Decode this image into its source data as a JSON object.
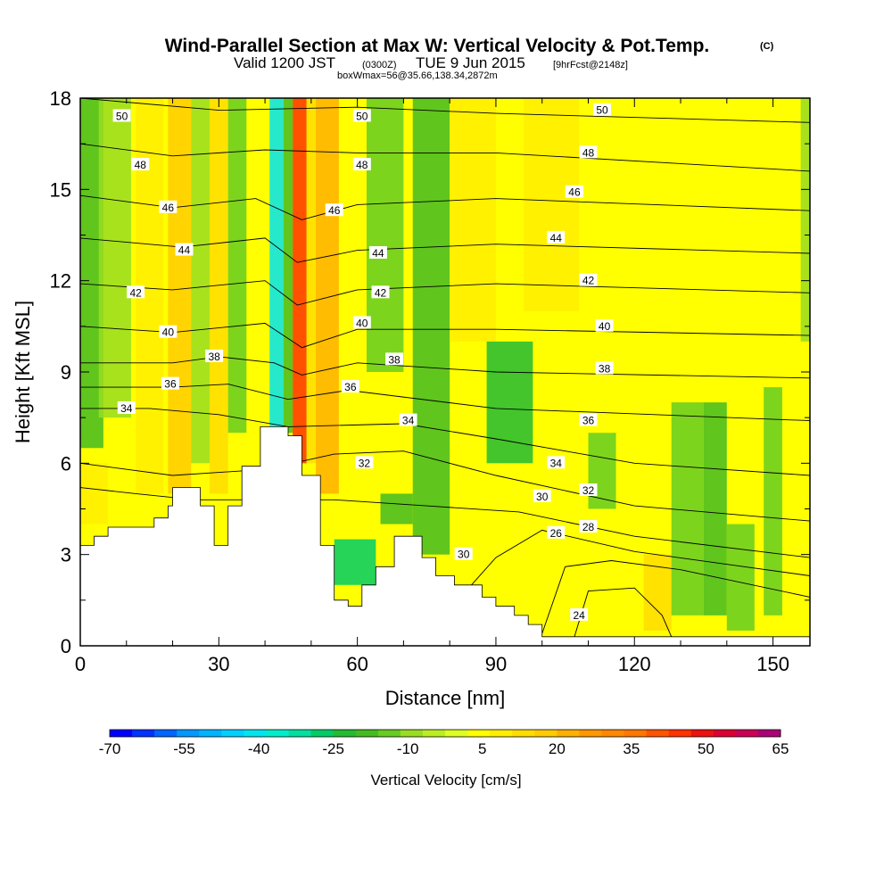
{
  "title": {
    "main": "Wind-Parallel Section at Max W: Vertical Velocity & Pot.Temp.",
    "copyright": "(C)",
    "valid_prefix": "Valid 1200 JST",
    "utc": "(0300Z)",
    "date": "TUE 9 Jun 2015",
    "forecast": "[9hrFcst@2148z]",
    "box": "boxWmax=56@35.66,138.34,2872m"
  },
  "chart_data": {
    "type": "heatmap",
    "xlabel": "Distance [nm]",
    "ylabel": "Height [Kft MSL]",
    "xlim": [
      0,
      158
    ],
    "ylim": [
      0,
      18
    ],
    "x_ticks": [
      "0",
      "30",
      "60",
      "90",
      "120",
      "150"
    ],
    "y_ticks": [
      "0",
      "3",
      "6",
      "9",
      "12",
      "15",
      "18"
    ],
    "colorbar": {
      "label": "Vertical Velocity [cm/s]",
      "tick_labels": [
        "-70",
        "-55",
        "-40",
        "-25",
        "-10",
        "5",
        "20",
        "35",
        "50",
        "65"
      ],
      "range": [
        -70,
        65
      ],
      "step": 5,
      "colors": [
        "#0000ff",
        "#0033ff",
        "#0066ff",
        "#0099ff",
        "#00b4ff",
        "#00d0ff",
        "#00e5f0",
        "#00eecc",
        "#00e0a0",
        "#00cc66",
        "#22bb33",
        "#44bb22",
        "#66cc22",
        "#99dd22",
        "#bbee22",
        "#ddff22",
        "#ffff00",
        "#ffee00",
        "#ffdd00",
        "#ffcc00",
        "#ffb000",
        "#ff9900",
        "#ff8800",
        "#ff7700",
        "#ff5500",
        "#ff3300",
        "#ee1111",
        "#dd0033",
        "#cc0055",
        "#aa0077"
      ]
    },
    "contour_labels": [
      {
        "v": "50",
        "x": 9,
        "y": 17.4
      },
      {
        "v": "48",
        "x": 13,
        "y": 15.8
      },
      {
        "v": "46",
        "x": 19,
        "y": 14.4
      },
      {
        "v": "44",
        "x": 22.5,
        "y": 13.0
      },
      {
        "v": "42",
        "x": 12,
        "y": 11.6
      },
      {
        "v": "40",
        "x": 19,
        "y": 10.3
      },
      {
        "v": "38",
        "x": 29,
        "y": 9.5
      },
      {
        "v": "36",
        "x": 19.5,
        "y": 8.6
      },
      {
        "v": "34",
        "x": 10,
        "y": 7.8
      },
      {
        "v": "50",
        "x": 61,
        "y": 17.4
      },
      {
        "v": "48",
        "x": 61,
        "y": 15.8
      },
      {
        "v": "46",
        "x": 55,
        "y": 14.3
      },
      {
        "v": "44",
        "x": 64.5,
        "y": 12.9
      },
      {
        "v": "42",
        "x": 65,
        "y": 11.6
      },
      {
        "v": "40",
        "x": 61,
        "y": 10.6
      },
      {
        "v": "38",
        "x": 68,
        "y": 9.4
      },
      {
        "v": "36",
        "x": 58.5,
        "y": 8.5
      },
      {
        "v": "34",
        "x": 71,
        "y": 7.4
      },
      {
        "v": "32",
        "x": 61.5,
        "y": 6.0
      },
      {
        "v": "30",
        "x": 83,
        "y": 3.0
      },
      {
        "v": "50",
        "x": 113,
        "y": 17.6
      },
      {
        "v": "48",
        "x": 110,
        "y": 16.2
      },
      {
        "v": "46",
        "x": 107,
        "y": 14.9
      },
      {
        "v": "44",
        "x": 103,
        "y": 13.4
      },
      {
        "v": "42",
        "x": 110,
        "y": 12.0
      },
      {
        "v": "40",
        "x": 113.5,
        "y": 10.5
      },
      {
        "v": "38",
        "x": 113.5,
        "y": 9.1
      },
      {
        "v": "36",
        "x": 110,
        "y": 7.4
      },
      {
        "v": "34",
        "x": 103,
        "y": 6.0
      },
      {
        "v": "32",
        "x": 110,
        "y": 5.1
      },
      {
        "v": "30",
        "x": 100,
        "y": 4.9
      },
      {
        "v": "28",
        "x": 110,
        "y": 3.9
      },
      {
        "v": "26",
        "x": 103,
        "y": 3.7
      },
      {
        "v": "24",
        "x": 108,
        "y": 1.0
      }
    ],
    "contour_lines": [
      {
        "v": 50,
        "pts": [
          [
            0,
            18
          ],
          [
            30,
            17.6
          ],
          [
            60,
            17.7
          ],
          [
            90,
            17.5
          ],
          [
            158,
            17.2
          ]
        ]
      },
      {
        "v": 48,
        "pts": [
          [
            0,
            16.5
          ],
          [
            20,
            16.1
          ],
          [
            40,
            16.3
          ],
          [
            60,
            16.2
          ],
          [
            90,
            16.2
          ],
          [
            158,
            15.6
          ]
        ]
      },
      {
        "v": 46,
        "pts": [
          [
            0,
            14.8
          ],
          [
            20,
            14.4
          ],
          [
            38,
            14.7
          ],
          [
            48,
            14.0
          ],
          [
            60,
            14.5
          ],
          [
            90,
            14.7
          ],
          [
            158,
            14.3
          ]
        ]
      },
      {
        "v": 44,
        "pts": [
          [
            0,
            13.4
          ],
          [
            22,
            13.1
          ],
          [
            40,
            13.4
          ],
          [
            47,
            12.6
          ],
          [
            60,
            13.0
          ],
          [
            90,
            13.2
          ],
          [
            158,
            12.9
          ]
        ]
      },
      {
        "v": 42,
        "pts": [
          [
            0,
            11.9
          ],
          [
            20,
            11.7
          ],
          [
            40,
            12.0
          ],
          [
            47,
            11.2
          ],
          [
            60,
            11.7
          ],
          [
            90,
            11.9
          ],
          [
            158,
            11.6
          ]
        ]
      },
      {
        "v": 40,
        "pts": [
          [
            0,
            10.5
          ],
          [
            20,
            10.3
          ],
          [
            40,
            10.6
          ],
          [
            48,
            9.8
          ],
          [
            60,
            10.4
          ],
          [
            90,
            10.4
          ],
          [
            158,
            10.2
          ]
        ]
      },
      {
        "v": 38,
        "pts": [
          [
            0,
            9.3
          ],
          [
            20,
            9.3
          ],
          [
            30,
            9.5
          ],
          [
            42,
            9.3
          ],
          [
            48,
            8.9
          ],
          [
            60,
            9.3
          ],
          [
            90,
            9.0
          ],
          [
            158,
            8.8
          ]
        ]
      },
      {
        "v": 36,
        "pts": [
          [
            0,
            8.5
          ],
          [
            20,
            8.5
          ],
          [
            32,
            8.6
          ],
          [
            45,
            8.1
          ],
          [
            58,
            8.4
          ],
          [
            90,
            7.8
          ],
          [
            158,
            7.4
          ]
        ]
      },
      {
        "v": 34,
        "pts": [
          [
            0,
            7.8
          ],
          [
            15,
            7.8
          ],
          [
            30,
            7.6
          ],
          [
            45,
            7.2
          ],
          [
            70,
            7.3
          ],
          [
            90,
            6.8
          ],
          [
            120,
            6.0
          ],
          [
            158,
            5.6
          ]
        ]
      },
      {
        "v": 32,
        "pts": [
          [
            0,
            6.0
          ],
          [
            20,
            5.6
          ],
          [
            40,
            5.8
          ],
          [
            55,
            6.3
          ],
          [
            70,
            6.4
          ],
          [
            90,
            5.6
          ],
          [
            120,
            4.6
          ],
          [
            158,
            4.1
          ]
        ]
      },
      {
        "v": 30,
        "pts": [
          [
            0,
            5.2
          ],
          [
            12,
            5.0
          ],
          [
            25,
            4.8
          ],
          [
            55,
            4.8
          ],
          [
            75,
            4.6
          ],
          [
            95,
            4.4
          ],
          [
            120,
            3.6
          ],
          [
            158,
            2.9
          ]
        ]
      },
      {
        "v": 28,
        "pts": [
          [
            80,
            1.2
          ],
          [
            90,
            2.9
          ],
          [
            100,
            3.8
          ],
          [
            120,
            3.1
          ],
          [
            158,
            2.3
          ]
        ]
      },
      {
        "v": 26,
        "pts": [
          [
            100,
            0.4
          ],
          [
            105,
            2.6
          ],
          [
            115,
            2.8
          ],
          [
            130,
            2.5
          ],
          [
            158,
            1.6
          ]
        ]
      },
      {
        "v": 24,
        "pts": [
          [
            107,
            0.3
          ],
          [
            110,
            1.8
          ],
          [
            120,
            1.9
          ],
          [
            126,
            1.0
          ],
          [
            128,
            0.3
          ]
        ]
      }
    ],
    "terrain": [
      [
        0,
        3.3
      ],
      [
        3,
        3.3
      ],
      [
        3,
        3.6
      ],
      [
        6,
        3.6
      ],
      [
        6,
        3.9
      ],
      [
        16,
        3.9
      ],
      [
        16,
        4.2
      ],
      [
        19,
        4.2
      ],
      [
        19,
        4.6
      ],
      [
        20,
        4.6
      ],
      [
        20,
        5.2
      ],
      [
        26,
        5.2
      ],
      [
        26,
        4.6
      ],
      [
        29,
        4.6
      ],
      [
        29,
        3.3
      ],
      [
        32,
        3.3
      ],
      [
        32,
        4.6
      ],
      [
        35,
        4.6
      ],
      [
        35,
        5.9
      ],
      [
        39,
        5.9
      ],
      [
        39,
        7.2
      ],
      [
        45,
        7.2
      ],
      [
        45,
        6.9
      ],
      [
        48,
        6.9
      ],
      [
        48,
        5.6
      ],
      [
        52,
        5.6
      ],
      [
        52,
        3.3
      ],
      [
        55,
        3.3
      ],
      [
        55,
        1.5
      ],
      [
        58,
        1.5
      ],
      [
        58,
        1.3
      ],
      [
        61,
        1.3
      ],
      [
        61,
        2.0
      ],
      [
        64,
        2.0
      ],
      [
        64,
        2.6
      ],
      [
        68,
        2.6
      ],
      [
        68,
        3.6
      ],
      [
        74,
        3.6
      ],
      [
        74,
        2.9
      ],
      [
        77,
        2.9
      ],
      [
        77,
        2.3
      ],
      [
        81,
        2.3
      ],
      [
        81,
        2.0
      ],
      [
        87,
        2.0
      ],
      [
        87,
        1.6
      ],
      [
        90,
        1.6
      ],
      [
        90,
        1.3
      ],
      [
        94,
        1.3
      ],
      [
        94,
        1.0
      ],
      [
        97,
        1.0
      ],
      [
        97,
        0.7
      ],
      [
        100,
        0.7
      ],
      [
        100,
        0.3
      ],
      [
        158,
        0.3
      ],
      [
        158,
        0
      ]
    ],
    "bands": [
      {
        "x0": 0,
        "x1": 5,
        "y0": 6.5,
        "y1": 18,
        "v": -12
      },
      {
        "x0": 4,
        "x1": 11,
        "y0": 7.5,
        "y1": 18,
        "v": -3
      },
      {
        "x0": 12,
        "x1": 18,
        "y0": 5,
        "y1": 18,
        "v": 15
      },
      {
        "x0": 19,
        "x1": 24,
        "y0": 5,
        "y1": 18,
        "v": 28
      },
      {
        "x0": 24,
        "x1": 28,
        "y0": 6,
        "y1": 18,
        "v": -5
      },
      {
        "x0": 28,
        "x1": 32,
        "y0": 5,
        "y1": 18,
        "v": 22
      },
      {
        "x0": 32,
        "x1": 36,
        "y0": 7,
        "y1": 18,
        "v": -8
      },
      {
        "x0": 36,
        "x1": 41,
        "y0": 7,
        "y1": 18,
        "v": 12
      },
      {
        "x0": 41,
        "x1": 44,
        "y0": 7,
        "y1": 18,
        "v": -40
      },
      {
        "x0": 44,
        "x1": 46,
        "y0": 7,
        "y1": 18,
        "v": -15
      },
      {
        "x0": 46,
        "x1": 49,
        "y0": 6,
        "y1": 18,
        "v": 55
      },
      {
        "x0": 49,
        "x1": 51,
        "y0": 6,
        "y1": 18,
        "v": 20
      },
      {
        "x0": 51,
        "x1": 56,
        "y0": 5,
        "y1": 18,
        "v": 32
      },
      {
        "x0": 56,
        "x1": 60,
        "y0": 5,
        "y1": 18,
        "v": 12
      },
      {
        "x0": 62,
        "x1": 70,
        "y0": 9,
        "y1": 18,
        "v": -10
      },
      {
        "x0": 72,
        "x1": 80,
        "y0": 3,
        "y1": 18,
        "v": -15
      },
      {
        "x0": 80,
        "x1": 90,
        "y0": 10,
        "y1": 18,
        "v": 18
      },
      {
        "x0": 88,
        "x1": 98,
        "y0": 6,
        "y1": 10,
        "v": -20
      },
      {
        "x0": 96,
        "x1": 108,
        "y0": 11,
        "y1": 18,
        "v": 15
      },
      {
        "x0": 110,
        "x1": 116,
        "y0": 4.5,
        "y1": 7,
        "v": -10
      },
      {
        "x0": 122,
        "x1": 128,
        "y0": 0.5,
        "y1": 3,
        "v": 22
      },
      {
        "x0": 128,
        "x1": 135,
        "y0": 1,
        "y1": 8,
        "v": -8
      },
      {
        "x0": 135,
        "x1": 140,
        "y0": 1,
        "y1": 8,
        "v": -12
      },
      {
        "x0": 140,
        "x1": 146,
        "y0": 0.5,
        "y1": 4,
        "v": -8
      },
      {
        "x0": 148,
        "x1": 152,
        "y0": 1,
        "y1": 8.5,
        "v": -10
      },
      {
        "x0": 156,
        "x1": 158,
        "y0": 10,
        "y1": 18,
        "v": -5
      },
      {
        "x0": 55,
        "x1": 64,
        "y0": 2,
        "y1": 3.5,
        "v": -22
      },
      {
        "x0": 65,
        "x1": 72,
        "y0": 4,
        "y1": 5,
        "v": -15
      },
      {
        "x0": 0,
        "x1": 6,
        "y0": 4,
        "y1": 6,
        "v": 15
      }
    ]
  }
}
